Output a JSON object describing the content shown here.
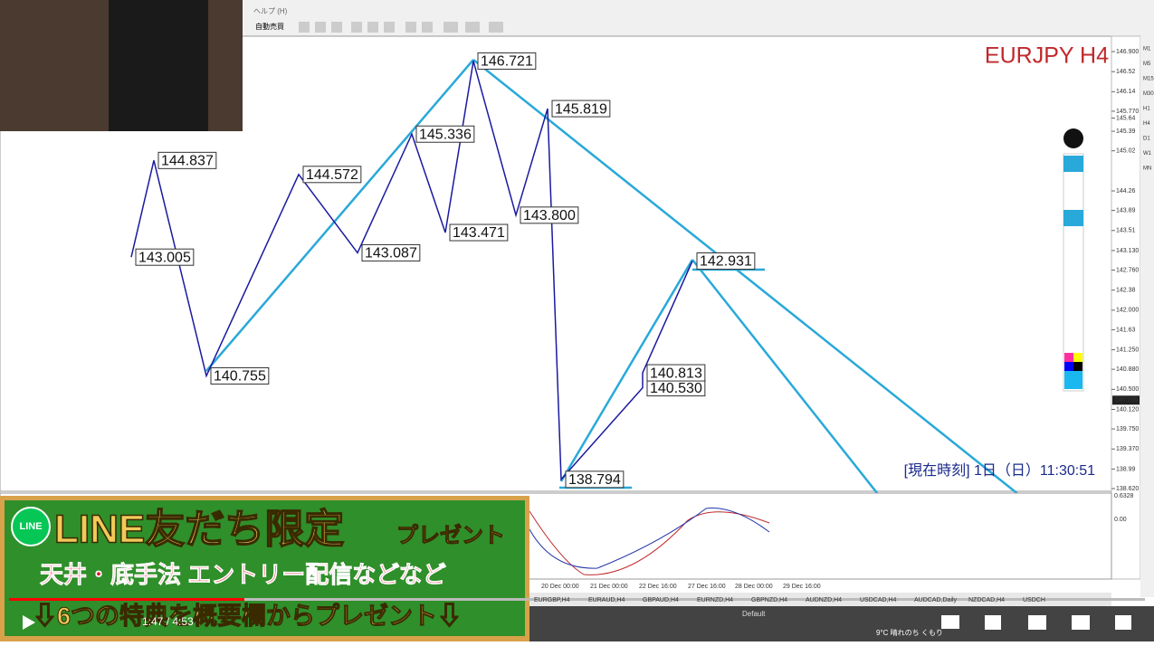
{
  "menu": {
    "help": "ヘルプ (H)",
    "auto_trade": "自動売買"
  },
  "chart_data": {
    "type": "price-path",
    "title": "EURJPY H4",
    "yticks": [
      {
        "value": 146.9,
        "label": "146.900"
      },
      146.52,
      146.14,
      {
        "value": 145.77,
        "label": "145.770"
      },
      145.39,
      145.02,
      145.64,
      144.26,
      143.89,
      143.51,
      {
        "value": 143.13,
        "label": "143.130"
      },
      {
        "value": 142.76,
        "label": "142.760"
      },
      142.38,
      {
        "value": 142,
        "label": "142.000"
      },
      141.63,
      {
        "value": 141.25,
        "label": "141.250"
      },
      {
        "value": 140.88,
        "label": "140.880"
      },
      {
        "value": 140.5,
        "label": "140.500"
      },
      {
        "value": 140.12,
        "label": "140.120"
      },
      {
        "value": 139.75,
        "label": "139.750"
      },
      {
        "value": 139.37,
        "label": "139.370"
      },
      138.99,
      {
        "value": 138.62,
        "label": "138.620"
      }
    ],
    "ylim": [
      138.62,
      146.9
    ],
    "current_price": 140.295,
    "price_points": [
      143.005,
      144.837,
      140.755,
      144.572,
      143.087,
      145.336,
      143.471,
      146.721,
      {
        "value": 143.8,
        "label": "143.800"
      },
      145.819,
      138.794,
      {
        "value": 140.53,
        "label": "140.530"
      },
      140.813,
      142.931
    ],
    "x": [
      "20 Dec 00:00",
      "21 Dec 00:00",
      "22 Dec 16:00",
      "27 Dec 16:00",
      "28 Dec 00:00",
      "29 Dec 16:00"
    ],
    "clock": "[現在時刻] 1日（日）11:30:51",
    "oscillator_ticks": [
      "0.6328",
      "0.00"
    ],
    "timeframes": [
      "M1",
      "M5",
      "M15",
      "M30",
      "H1",
      "H4",
      "D1",
      "W1",
      "MN"
    ]
  },
  "tabs": [
    "EURGBP,H4",
    "EURAUD,H4",
    "GBPAUD,H4",
    "EURNZD,H4",
    "GBPNZD,H4",
    "AUDNZD,H4",
    "USDCAD,H4",
    "AUDCAD,Daily",
    "NZDCAD,H4",
    "USDCH"
  ],
  "status": "Default",
  "banner": {
    "badge": "LINE",
    "headline": "LINE友だち限定",
    "present": "プレゼント",
    "line2": "天井・底手法 エントリー配信などなど",
    "line3": "⇩6つの特典を概要欄からプレゼント⇩"
  },
  "player": {
    "time": "1:47 / 4:53"
  },
  "taskbar": {
    "weather": "9°C 晴れのち くもり"
  }
}
